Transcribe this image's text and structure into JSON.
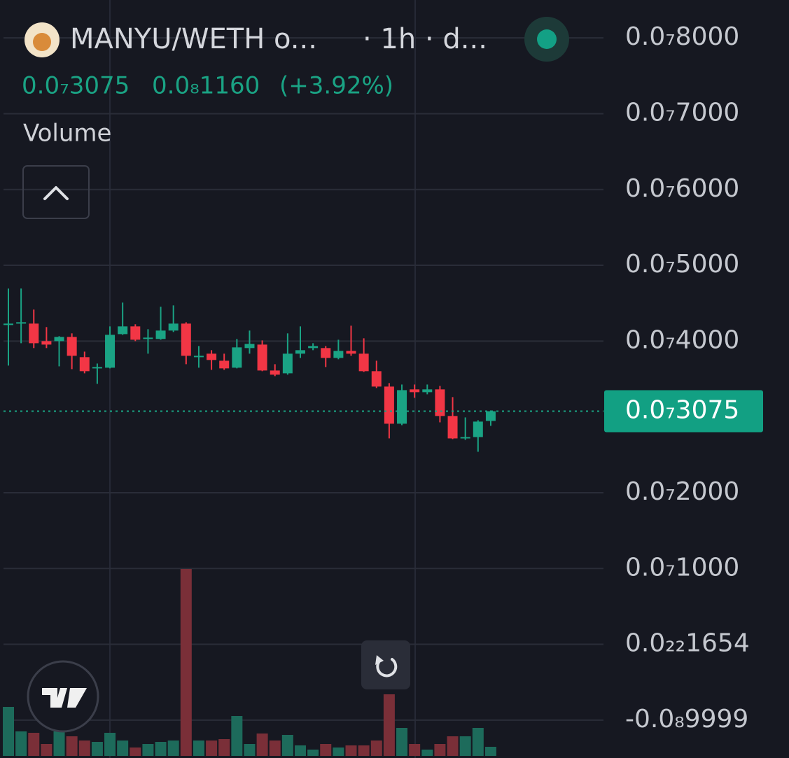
{
  "chart_data": {
    "type": "candlestick",
    "symbol": "MANYU/WETH o...",
    "interval": "· 1h · d...",
    "price": "0.0₇3075",
    "change": "0.0₈1160",
    "change_percent": "(+3.92%)",
    "volume_label": "Volume",
    "up_color": "#1aa384",
    "down_color": "#f23645",
    "volume_up_color": "#1d6b5b",
    "volume_down_color": "#7a2f38",
    "open": [
      4.212e-08,
      4.231e-08,
      4.231e-08,
      4e-08,
      4e-08,
      4.055e-08,
      3.788e-08,
      3.649e-08,
      3.649e-08,
      4.092e-08,
      4.194e-08,
      4.028e-08,
      4.028e-08,
      4.139e-08,
      4.231e-08,
      3.788e-08,
      3.834e-08,
      3.741e-08,
      3.649e-08,
      3.908e-08,
      3.954e-08,
      3.612e-08,
      3.575e-08,
      3.834e-08,
      3.908e-08,
      3.908e-08,
      3.778e-08,
      3.871e-08,
      3.834e-08,
      3.603e-08,
      3.4e-08,
      2.91e-08,
      3.363e-08,
      3.326e-08,
      3.363e-08,
      3.012e-08,
      2.716e-08,
      2.734e-08,
      2.947e-08
    ],
    "high": [
      4.693e-08,
      4.693e-08,
      4.416e-08,
      4.185e-08,
      4.065e-08,
      4.102e-08,
      3.861e-08,
      3.704e-08,
      4.194e-08,
      4.508e-08,
      4.222e-08,
      4.157e-08,
      4.453e-08,
      4.471e-08,
      4.249e-08,
      3.935e-08,
      3.88e-08,
      3.834e-08,
      4.028e-08,
      4.139e-08,
      4.009e-08,
      3.695e-08,
      4.102e-08,
      4.194e-08,
      3.972e-08,
      3.935e-08,
      4.018e-08,
      4.203e-08,
      4.037e-08,
      3.741e-08,
      3.446e-08,
      3.427e-08,
      3.427e-08,
      3.427e-08,
      3.409e-08,
      3.261e-08,
      2.993e-08,
      2.956e-08,
      3.085e-08
    ],
    "low": [
      3.677e-08,
      3.972e-08,
      3.908e-08,
      3.908e-08,
      3.667e-08,
      3.63e-08,
      3.575e-08,
      3.436e-08,
      3.64e-08,
      4.083e-08,
      4e-08,
      3.834e-08,
      4.018e-08,
      4.12e-08,
      3.695e-08,
      3.649e-08,
      3.621e-08,
      3.621e-08,
      3.64e-08,
      3.834e-08,
      3.603e-08,
      3.538e-08,
      3.557e-08,
      3.778e-08,
      3.88e-08,
      3.658e-08,
      3.76e-08,
      3.806e-08,
      3.594e-08,
      3.381e-08,
      2.716e-08,
      2.891e-08,
      3.252e-08,
      3.298e-08,
      2.928e-08,
      2.707e-08,
      2.697e-08,
      2.54e-08,
      2.882e-08
    ],
    "close": [
      4.231e-08,
      4.249e-08,
      3.972e-08,
      3.954e-08,
      4.055e-08,
      3.806e-08,
      3.603e-08,
      3.658e-08,
      4.083e-08,
      4.194e-08,
      4.018e-08,
      4.046e-08,
      4.139e-08,
      4.231e-08,
      3.806e-08,
      3.806e-08,
      3.751e-08,
      3.64e-08,
      3.917e-08,
      3.963e-08,
      3.612e-08,
      3.557e-08,
      3.834e-08,
      3.88e-08,
      3.935e-08,
      3.778e-08,
      3.871e-08,
      3.834e-08,
      3.603e-08,
      3.4e-08,
      2.91e-08,
      3.353e-08,
      3.326e-08,
      3.363e-08,
      3.012e-08,
      2.716e-08,
      2.734e-08,
      2.938e-08,
      3.075e-08
    ],
    "volume": [
      70,
      35,
      33,
      17,
      35,
      28,
      22,
      20,
      33,
      22,
      12,
      17,
      20,
      22,
      267,
      22,
      22,
      24,
      57,
      17,
      32,
      22,
      30,
      15,
      9,
      17,
      12,
      15,
      15,
      22,
      88,
      40,
      17,
      9,
      17,
      28,
      28,
      40,
      13
    ],
    "last_price": {
      "value": 3.075e-08,
      "label": "0.0₇3075"
    },
    "ylim": [
      -1.5e-08,
      8.5e-08
    ],
    "yticks": [
      {
        "value": 8e-08,
        "label": "0.0₇8000"
      },
      {
        "value": 7e-08,
        "label": "0.0₇7000"
      },
      {
        "value": 6e-08,
        "label": "0.0₇6000"
      },
      {
        "value": 5e-08,
        "label": "0.0₇5000"
      },
      {
        "value": 4e-08,
        "label": "0.0₇4000"
      },
      {
        "value": 2e-08,
        "label": "0.0₇2000"
      },
      {
        "value": 1e-08,
        "label": "0.0₇1000"
      },
      {
        "value": 1.654e-23,
        "label": "0.0₂₂1654"
      },
      {
        "value": -9.999e-09,
        "label": "-0.0₈9999"
      }
    ],
    "grid": true
  }
}
